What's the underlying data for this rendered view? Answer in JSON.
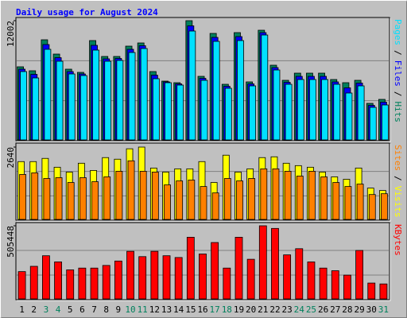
{
  "title": "Daily usage for August 2024",
  "legend_separator": "/",
  "x_axis": {
    "categories": [
      "1",
      "2",
      "3",
      "4",
      "5",
      "6",
      "7",
      "8",
      "9",
      "10",
      "11",
      "12",
      "13",
      "14",
      "15",
      "16",
      "17",
      "18",
      "19",
      "20",
      "21",
      "22",
      "23",
      "24",
      "25",
      "26",
      "27",
      "28",
      "29",
      "30",
      "31"
    ],
    "colors": [
      "#000000",
      "#000000",
      "#00805c",
      "#00805c",
      "#000000",
      "#000000",
      "#000000",
      "#000000",
      "#000000",
      "#00805c",
      "#00805c",
      "#000000",
      "#000000",
      "#000000",
      "#000000",
      "#000000",
      "#00805c",
      "#00805c",
      "#000000",
      "#000000",
      "#000000",
      "#000000",
      "#000000",
      "#00805c",
      "#00805c",
      "#000000",
      "#000000",
      "#000000",
      "#000000",
      "#000000",
      "#00805c"
    ]
  },
  "chart_data": [
    {
      "type": "bar",
      "ylim": [
        0,
        12002
      ],
      "yticks": [
        12002
      ],
      "series": [
        {
          "name": "Hits",
          "color": "#00805c",
          "values": [
            7360,
            6960,
            10080,
            8640,
            7120,
            6800,
            10000,
            8400,
            8400,
            9440,
            9760,
            6880,
            5920,
            5760,
            12002,
            6400,
            10720,
            5600,
            10800,
            5840,
            11040,
            7520,
            6000,
            6720,
            6720,
            6720,
            6080,
            5760,
            6000,
            3680,
            4080
          ]
        },
        {
          "name": "Files",
          "color": "#0000ff",
          "values": [
            7120,
            6600,
            9600,
            8280,
            6880,
            6640,
            9520,
            8160,
            8200,
            9120,
            9480,
            6520,
            5840,
            5640,
            11481,
            6200,
            10320,
            5400,
            10400,
            5640,
            10800,
            7280,
            5800,
            6400,
            6400,
            6400,
            5840,
            5240,
            5720,
            3480,
            3800
          ]
        },
        {
          "name": "Pages",
          "color": "#00e0ff",
          "values": [
            6880,
            6240,
            9120,
            7920,
            6640,
            6480,
            9040,
            7920,
            8000,
            8800,
            9200,
            6160,
            5760,
            5520,
            10960,
            6000,
            9920,
            5200,
            10000,
            5440,
            10560,
            7040,
            5600,
            6080,
            6080,
            6080,
            5600,
            4720,
            5440,
            3280,
            3520
          ]
        }
      ]
    },
    {
      "type": "bar",
      "ylim": [
        0,
        2640
      ],
      "yticks": [
        2640
      ],
      "series": [
        {
          "name": "Visits",
          "color": "#ffff00",
          "values": [
            2110,
            2110,
            2227,
            1905,
            1729,
            2051,
            1787,
            2256,
            2198,
            2578,
            2640,
            1875,
            1729,
            1846,
            1846,
            2110,
            1348,
            2344,
            1729,
            1846,
            2256,
            2285,
            2051,
            1963,
            1905,
            1729,
            1553,
            1465,
            1875,
            1143,
            1055
          ]
        },
        {
          "name": "Sites",
          "color": "#ff8000",
          "values": [
            1641,
            1699,
            1494,
            1524,
            1348,
            1524,
            1377,
            1553,
            1758,
            2139,
            1758,
            1729,
            1260,
            1406,
            1436,
            1201,
            967,
            1494,
            1406,
            1494,
            1846,
            1846,
            1758,
            1582,
            1758,
            1553,
            1348,
            1201,
            1289,
            908,
            938
          ]
        }
      ]
    },
    {
      "type": "bar",
      "ylim": [
        0,
        505448
      ],
      "yticks": [
        505448
      ],
      "series": [
        {
          "name": "KBytes",
          "color": "#ff0000",
          "values": [
            188790,
            225330,
            298410,
            255780,
            200970,
            213150,
            213150,
            231420,
            261870,
            328860,
            292320,
            328860,
            298410,
            286230,
            426300,
            310590,
            389760,
            213150,
            426300,
            274050,
            505448,
            487200,
            304500,
            347130,
            255780,
            213150,
            194880,
            164430,
            334950,
            109620,
            103530
          ]
        }
      ]
    }
  ]
}
